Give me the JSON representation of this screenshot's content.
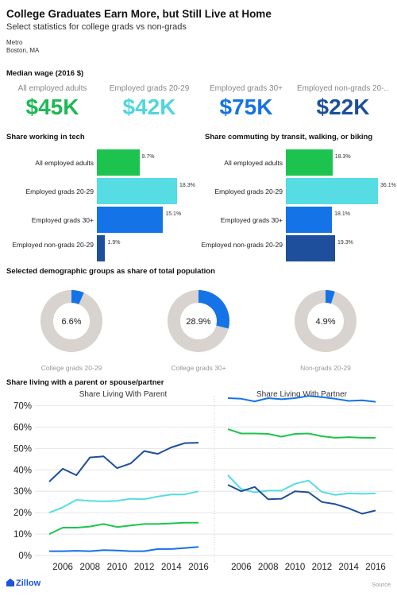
{
  "header": {
    "title": "College Graduates Earn More, but Still Live at Home",
    "subtitle": "Select statistics for college grads vs non-grads",
    "metro_label": "Metro",
    "metro_value": "Boston, MA"
  },
  "median_wage": {
    "section_title": "Median wage (2016 $)",
    "items": [
      {
        "label": "All employed adults",
        "value": "$45K",
        "color": "#1db954"
      },
      {
        "label": "Employed grads 20-29",
        "value": "$42K",
        "color": "#4fd6de"
      },
      {
        "label": "Employed grads 30+",
        "value": "$75K",
        "color": "#1473e6"
      },
      {
        "label": "Employed non-grads 20-...",
        "value": "$22K",
        "color": "#1d4f9c"
      }
    ]
  },
  "tech": {
    "section_title": "Share working in tech",
    "chart_data": {
      "type": "bar",
      "categories": [
        "All employed adults",
        "Employed grads 20-29",
        "Employed grads 30+",
        "Employed non-grads 20-29"
      ],
      "values": [
        9.7,
        18.3,
        15.1,
        1.9
      ],
      "labels": [
        "9.7%",
        "18.3%",
        "15.1%",
        "1.9%"
      ],
      "colors": [
        "#1cc44f",
        "#55dde3",
        "#1473e6",
        "#1d4f9c"
      ]
    }
  },
  "commute": {
    "section_title": "Share commuting by transit, walking, or biking",
    "chart_data": {
      "type": "bar",
      "categories": [
        "All employed adults",
        "Employed grads 20-29",
        "Employed grads 30+",
        "Employed non-grads 20-29"
      ],
      "values": [
        18.3,
        36.1,
        18.1,
        19.3
      ],
      "labels": [
        "18.3%",
        "36.1%",
        "18.1%",
        "19.3%"
      ],
      "colors": [
        "#1cc44f",
        "#55dde3",
        "#1473e6",
        "#1d4f9c"
      ]
    }
  },
  "demographics": {
    "section_title": "Selected demographic groups as share of total population",
    "chart_data": {
      "type": "pie",
      "items": [
        {
          "label": "College grads 20-29",
          "value": 6.6,
          "text": "6.6%"
        },
        {
          "label": "College grads 30+",
          "value": 28.9,
          "text": "28.9%"
        },
        {
          "label": "Non-grads 20-29",
          "value": 4.9,
          "text": "4.9%"
        }
      ],
      "fill_color": "#1473e6",
      "track_color": "#d8d3cf"
    }
  },
  "living": {
    "section_title": "Share living with a parent or spouse/partner",
    "chart_data": {
      "type": "line",
      "x": [
        2005,
        2006,
        2007,
        2008,
        2009,
        2010,
        2011,
        2012,
        2013,
        2014,
        2015,
        2016
      ],
      "xticks": [
        "2006",
        "2008",
        "2010",
        "2012",
        "2014",
        "2016"
      ],
      "yticks": [
        "0%",
        "10%",
        "20%",
        "30%",
        "40%",
        "50%",
        "60%",
        "70%"
      ],
      "ylim": [
        0,
        75
      ],
      "panels": [
        {
          "title": "Share Living With Parent",
          "series": [
            {
              "color": "#1d4f9c",
              "values": [
                34.5,
                40.5,
                37.5,
                45.8,
                46.3,
                40.8,
                43.0,
                48.8,
                47.5,
                50.5,
                52.5,
                52.7
              ]
            },
            {
              "color": "#55dde3",
              "values": [
                20.0,
                22.5,
                26.0,
                25.5,
                25.3,
                25.5,
                26.5,
                26.3,
                27.5,
                28.5,
                28.5,
                30.0
              ]
            },
            {
              "color": "#1cc44f",
              "values": [
                10.0,
                13.0,
                13.0,
                13.5,
                14.7,
                13.3,
                14.0,
                14.7,
                14.7,
                15.0,
                15.3,
                15.3
              ]
            },
            {
              "color": "#1473e6",
              "values": [
                2.0,
                2.0,
                2.2,
                2.0,
                2.5,
                2.3,
                2.0,
                2.0,
                3.0,
                3.0,
                3.5,
                4.0
              ]
            }
          ]
        },
        {
          "title": "Share Living With Partner",
          "series": [
            {
              "color": "#1473e6",
              "values": [
                73.5,
                73.2,
                72.0,
                73.5,
                73.0,
                73.5,
                74.5,
                74.0,
                73.2,
                72.2,
                72.5,
                71.8
              ]
            },
            {
              "color": "#1cc44f",
              "values": [
                59.0,
                57.0,
                57.0,
                56.8,
                55.5,
                56.8,
                57.0,
                55.7,
                55.0,
                55.3,
                55.0,
                55.0
              ]
            },
            {
              "color": "#55dde3",
              "values": [
                37.5,
                31.0,
                29.5,
                30.3,
                30.3,
                33.5,
                35.0,
                29.7,
                28.3,
                29.0,
                28.8,
                29.0
              ]
            },
            {
              "color": "#1d4f9c",
              "values": [
                33.0,
                30.0,
                32.0,
                26.3,
                26.5,
                30.0,
                29.5,
                25.0,
                24.0,
                22.0,
                19.5,
                21.0
              ]
            }
          ]
        }
      ]
    }
  },
  "footer": {
    "logo": "Zillow",
    "source": "Source"
  }
}
